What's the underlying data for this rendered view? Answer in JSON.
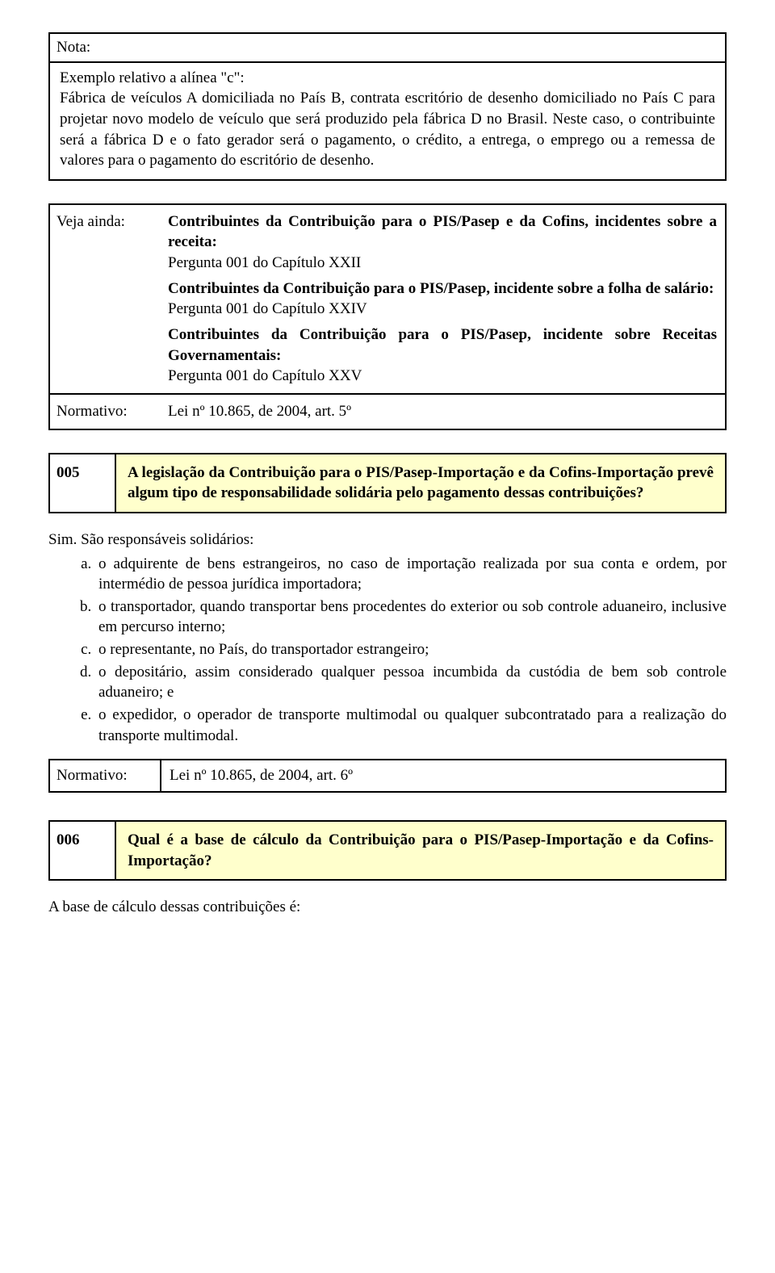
{
  "nota": {
    "header": "Nota:",
    "title": "Exemplo relativo a alínea \"c\":",
    "body": "Fábrica de veículos A domiciliada no País B, contrata escritório de desenho domiciliado no País C para projetar novo modelo de veículo que será produzido pela fábrica D no Brasil. Neste caso, o contribuinte será a fábrica D e o fato gerador será o pagamento, o crédito, a entrega, o emprego ou a remessa de valores para o pagamento do escritório de desenho."
  },
  "veja": {
    "label": "Veja ainda:",
    "p1_bold": "Contribuintes da Contribuição para o PIS/Pasep e da Cofins, incidentes sobre a receita:",
    "p1_plain": "Pergunta 001 do Capítulo XXII",
    "p2_bold": "Contribuintes da Contribuição para o PIS/Pasep, incidente sobre a folha de salário:",
    "p2_plain": "Pergunta 001 do Capítulo XXIV",
    "p3_bold": "Contribuintes da Contribuição para o PIS/Pasep, incidente sobre Receitas Governamentais:",
    "p3_plain": "Pergunta 001 do Capítulo XXV",
    "norm_label": "Normativo:",
    "norm_text": "Lei nº 10.865, de 2004, art. 5º"
  },
  "q005": {
    "num": "005",
    "text": "A legislação da Contribuição para o PIS/Pasep-Importação e da Cofins-Importação prevê algum tipo de responsabilidade solidária pelo pagamento dessas contribuições?"
  },
  "answer005": {
    "lead": "Sim. São responsáveis solidários:",
    "items": [
      "o adquirente de bens estrangeiros, no caso de importação realizada por sua conta e ordem, por intermédio de pessoa jurídica importadora;",
      "o transportador, quando transportar bens procedentes do exterior ou sob controle aduaneiro, inclusive em percurso interno;",
      "o representante, no País, do transportador estrangeiro;",
      "o depositário, assim considerado qualquer pessoa incumbida da custódia de bem sob controle aduaneiro; e",
      "o expedidor, o operador de transporte multimodal ou qualquer subcontratado para a realização do transporte multimodal."
    ]
  },
  "norm005": {
    "label": "Normativo:",
    "text": "Lei nº 10.865, de 2004, art. 6º"
  },
  "q006": {
    "num": "006",
    "text": "Qual é a base de cálculo da Contribuição para o PIS/Pasep-Importação e da Cofins-Importação?"
  },
  "final_line": "A base de cálculo dessas contribuições é:"
}
